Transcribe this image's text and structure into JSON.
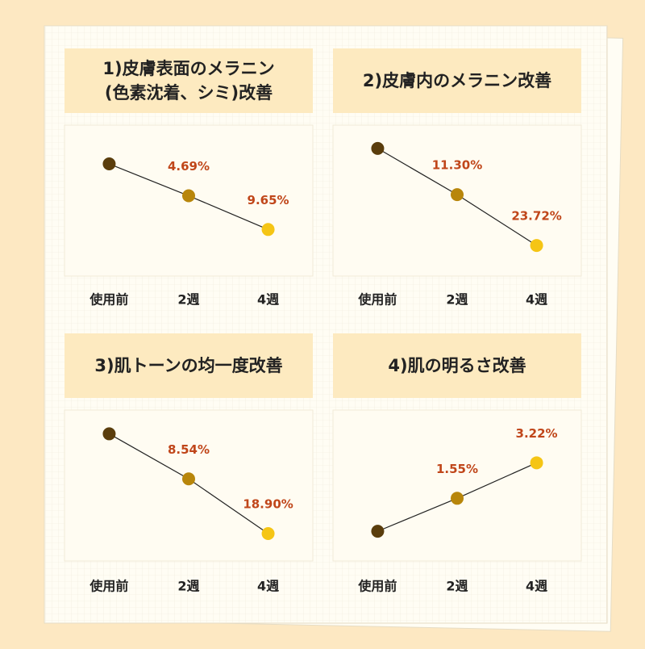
{
  "chart_data": [
    {
      "type": "line",
      "title": [
        "1)皮膚表面のメラニン",
        "(色素沈着、シミ)改善"
      ],
      "categories": [
        "使用前",
        "2週",
        "4週"
      ],
      "values": [
        0,
        4.69,
        9.65
      ],
      "value_labels": [
        null,
        "4.69%",
        "9.65%"
      ],
      "point_colors": [
        "#5a3d0c",
        "#b8860b",
        "#f5c515"
      ],
      "ylim": [
        16.5,
        -5.7
      ]
    },
    {
      "type": "line",
      "title": "2)皮膚内のメラニン改善",
      "categories": [
        "使用前",
        "2週",
        "4週"
      ],
      "values": [
        0,
        11.3,
        23.72
      ],
      "value_labels": [
        null,
        "11.30%",
        "23.72%"
      ],
      "point_colors": [
        "#5a3d0c",
        "#b8860b",
        "#f5c515"
      ],
      "ylim": [
        31.2,
        -5.7
      ]
    },
    {
      "type": "line",
      "title": "3)肌トーンの均一度改善",
      "categories": [
        "使用前",
        "2週",
        "4週"
      ],
      "values": [
        0,
        8.54,
        18.9
      ],
      "value_labels": [
        null,
        "8.54%",
        "18.90%"
      ],
      "point_colors": [
        "#5a3d0c",
        "#b8860b",
        "#f5c515"
      ],
      "ylim": [
        24.1,
        -4.5
      ]
    },
    {
      "type": "line",
      "title": "4)肌の明るさ改善",
      "categories": [
        "使用前",
        "2週",
        "4週"
      ],
      "values": [
        0,
        1.55,
        3.22
      ],
      "value_labels": [
        null,
        "1.55%",
        "3.22%"
      ],
      "point_colors": [
        "#5a3d0c",
        "#b8860b",
        "#f5c515"
      ],
      "ylim": [
        -1.4,
        5.7
      ]
    }
  ]
}
